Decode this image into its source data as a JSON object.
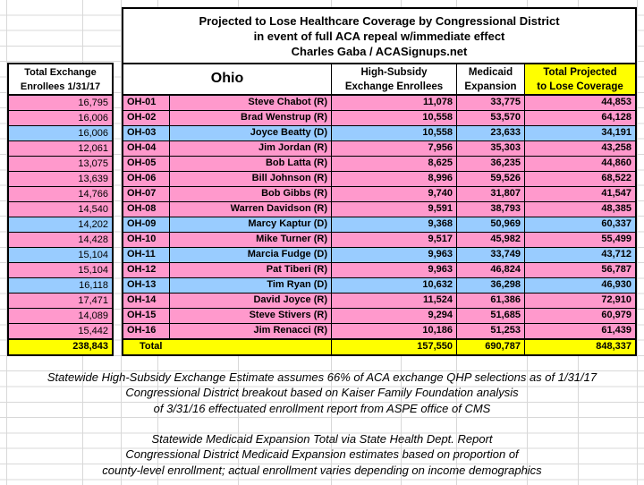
{
  "title": {
    "line1": "Projected to Lose Healthcare Coverage by Congressional District",
    "line2": "in event of full ACA repeal w/immediate effect",
    "line3": "Charles Gaba / ACASignups.net"
  },
  "left_column": {
    "header_line1": "Total Exchange",
    "header_line2": "Enrollees 1/31/17"
  },
  "table": {
    "state_label": "Ohio",
    "headers": {
      "high_subsidy_line1": "High-Subsidy",
      "high_subsidy_line2": "Exchange Enrollees",
      "medicaid_line1": "Medicaid",
      "medicaid_line2": "Expansion",
      "total_line1": "Total Projected",
      "total_line2": "to Lose Coverage"
    },
    "rows": [
      {
        "exchange_enrollees": "16,795",
        "district": "OH-01",
        "rep": "Steve Chabot (R)",
        "party": "R",
        "high_subsidy": "11,078",
        "medicaid": "33,775",
        "total": "44,853"
      },
      {
        "exchange_enrollees": "16,006",
        "district": "OH-02",
        "rep": "Brad Wenstrup (R)",
        "party": "R",
        "high_subsidy": "10,558",
        "medicaid": "53,570",
        "total": "64,128"
      },
      {
        "exchange_enrollees": "16,006",
        "district": "OH-03",
        "rep": "Joyce Beatty (D)",
        "party": "D",
        "high_subsidy": "10,558",
        "medicaid": "23,633",
        "total": "34,191"
      },
      {
        "exchange_enrollees": "12,061",
        "district": "OH-04",
        "rep": "Jim Jordan (R)",
        "party": "R",
        "high_subsidy": "7,956",
        "medicaid": "35,303",
        "total": "43,258"
      },
      {
        "exchange_enrollees": "13,075",
        "district": "OH-05",
        "rep": "Bob Latta (R)",
        "party": "R",
        "high_subsidy": "8,625",
        "medicaid": "36,235",
        "total": "44,860"
      },
      {
        "exchange_enrollees": "13,639",
        "district": "OH-06",
        "rep": "Bill Johnson (R)",
        "party": "R",
        "high_subsidy": "8,996",
        "medicaid": "59,526",
        "total": "68,522"
      },
      {
        "exchange_enrollees": "14,766",
        "district": "OH-07",
        "rep": "Bob Gibbs (R)",
        "party": "R",
        "high_subsidy": "9,740",
        "medicaid": "31,807",
        "total": "41,547"
      },
      {
        "exchange_enrollees": "14,540",
        "district": "OH-08",
        "rep": "Warren Davidson (R)",
        "party": "R",
        "high_subsidy": "9,591",
        "medicaid": "38,793",
        "total": "48,385"
      },
      {
        "exchange_enrollees": "14,202",
        "district": "OH-09",
        "rep": "Marcy Kaptur (D)",
        "party": "D",
        "high_subsidy": "9,368",
        "medicaid": "50,969",
        "total": "60,337"
      },
      {
        "exchange_enrollees": "14,428",
        "district": "OH-10",
        "rep": "Mike Turner (R)",
        "party": "R",
        "high_subsidy": "9,517",
        "medicaid": "45,982",
        "total": "55,499"
      },
      {
        "exchange_enrollees": "15,104",
        "district": "OH-11",
        "rep": "Marcia Fudge (D)",
        "party": "D",
        "high_subsidy": "9,963",
        "medicaid": "33,749",
        "total": "43,712"
      },
      {
        "exchange_enrollees": "15,104",
        "district": "OH-12",
        "rep": "Pat Tiberi (R)",
        "party": "R",
        "high_subsidy": "9,963",
        "medicaid": "46,824",
        "total": "56,787"
      },
      {
        "exchange_enrollees": "16,118",
        "district": "OH-13",
        "rep": "Tim Ryan (D)",
        "party": "D",
        "high_subsidy": "10,632",
        "medicaid": "36,298",
        "total": "46,930"
      },
      {
        "exchange_enrollees": "17,471",
        "district": "OH-14",
        "rep": "David Joyce (R)",
        "party": "R",
        "high_subsidy": "11,524",
        "medicaid": "61,386",
        "total": "72,910"
      },
      {
        "exchange_enrollees": "14,089",
        "district": "OH-15",
        "rep": "Steve Stivers (R)",
        "party": "R",
        "high_subsidy": "9,294",
        "medicaid": "51,685",
        "total": "60,979"
      },
      {
        "exchange_enrollees": "15,442",
        "district": "OH-16",
        "rep": "Jim Renacci (R)",
        "party": "R",
        "high_subsidy": "10,186",
        "medicaid": "51,253",
        "total": "61,439"
      }
    ],
    "total_row": {
      "label": "Total",
      "exchange_enrollees": "238,843",
      "high_subsidy": "157,550",
      "medicaid": "690,787",
      "total": "848,337"
    }
  },
  "notes": {
    "block1": [
      "Statewide High-Subsidy Exchange Estimate assumes 66% of ACA exchange QHP selections as of 1/31/17",
      "Congressional District breakout based on Kaiser Family Foundation analysis",
      "of 3/31/16 effectuated enrollment report from ASPE office of CMS"
    ],
    "block2": [
      "Statewide Medicaid Expansion Total via State Health Dept. Report",
      "Congressional District Medicaid Expansion estimates based on proportion of",
      "county-level enrollment; actual enrollment varies depending on income demographics"
    ]
  },
  "colors": {
    "republican_row": "#FF99CC",
    "democrat_row": "#99CCFF",
    "total_row": "#FFFF00",
    "highlight_header": "#FFFF00",
    "gridline": "#D8D8D8"
  }
}
